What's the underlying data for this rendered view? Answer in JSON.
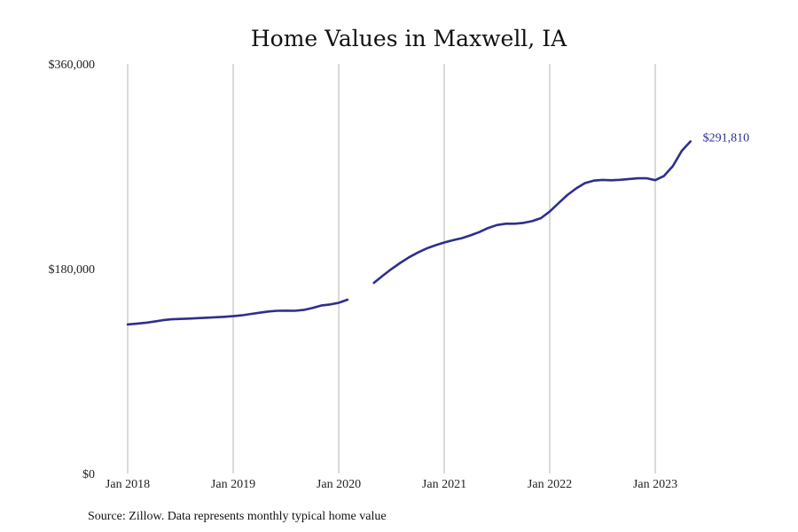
{
  "chart_data": {
    "type": "line",
    "title": "Home Values in Maxwell, IA",
    "xlabel": "",
    "ylabel": "",
    "ylim": [
      0,
      360000
    ],
    "xlim": [
      "2018-01",
      "2023-12"
    ],
    "y_ticks": [
      {
        "value": 0,
        "label": "$0"
      },
      {
        "value": 180000,
        "label": "$180,000"
      },
      {
        "value": 360000,
        "label": "$360,000"
      }
    ],
    "x_ticks": [
      {
        "value": "2018-01",
        "label": "Jan 2018"
      },
      {
        "value": "2019-01",
        "label": "Jan 2019"
      },
      {
        "value": "2020-01",
        "label": "Jan 2020"
      },
      {
        "value": "2021-01",
        "label": "Jan 2021"
      },
      {
        "value": "2022-01",
        "label": "Jan 2022"
      },
      {
        "value": "2023-01",
        "label": "Jan 2023"
      }
    ],
    "grid": "vertical",
    "series_color": "#2e2e8f",
    "series": [
      {
        "segments": [
          {
            "x": [
              "2018-01",
              "2018-02",
              "2018-03",
              "2018-04",
              "2018-05",
              "2018-06",
              "2018-07",
              "2018-08",
              "2018-09",
              "2018-10",
              "2018-11",
              "2018-12",
              "2019-01",
              "2019-02",
              "2019-03",
              "2019-04",
              "2019-05",
              "2019-06",
              "2019-07",
              "2019-08",
              "2019-09",
              "2019-10",
              "2019-11",
              "2019-12",
              "2020-01",
              "2020-02"
            ],
            "y": [
              131000,
              131600,
              132400,
              133500,
              134700,
              135500,
              135800,
              136100,
              136500,
              136900,
              137300,
              137700,
              138200,
              139000,
              140200,
              141300,
              142400,
              143000,
              143100,
              143000,
              143700,
              145400,
              147600,
              148500,
              150000,
              152700
            ]
          },
          {
            "x": [
              "2020-05",
              "2020-06",
              "2020-07",
              "2020-08",
              "2020-09",
              "2020-10",
              "2020-11",
              "2020-12",
              "2021-01",
              "2021-02",
              "2021-03",
              "2021-04",
              "2021-05",
              "2021-06",
              "2021-07",
              "2021-08",
              "2021-09",
              "2021-10",
              "2021-11",
              "2021-12",
              "2022-01",
              "2022-02",
              "2022-03",
              "2022-04",
              "2022-05",
              "2022-06",
              "2022-07",
              "2022-08",
              "2022-09",
              "2022-10",
              "2022-11",
              "2022-12",
              "2023-01",
              "2023-02",
              "2023-03",
              "2023-04",
              "2023-05"
            ],
            "y": [
              167500,
              173800,
              179700,
              185100,
              190000,
              194200,
              197800,
              200600,
              203000,
              205000,
              206800,
              209300,
              212200,
              215800,
              218300,
              219500,
              219500,
              220200,
              221800,
              224400,
              230200,
              237500,
              244700,
              250500,
              255200,
              257400,
              258000,
              257700,
              258100,
              258800,
              259400,
              259500,
              257800,
              261500,
              270100,
              283400,
              291810
            ]
          }
        ],
        "end_label": "$291,810"
      }
    ]
  },
  "footer": {
    "source": "Source: Zillow. Data represents monthly typical home value"
  }
}
